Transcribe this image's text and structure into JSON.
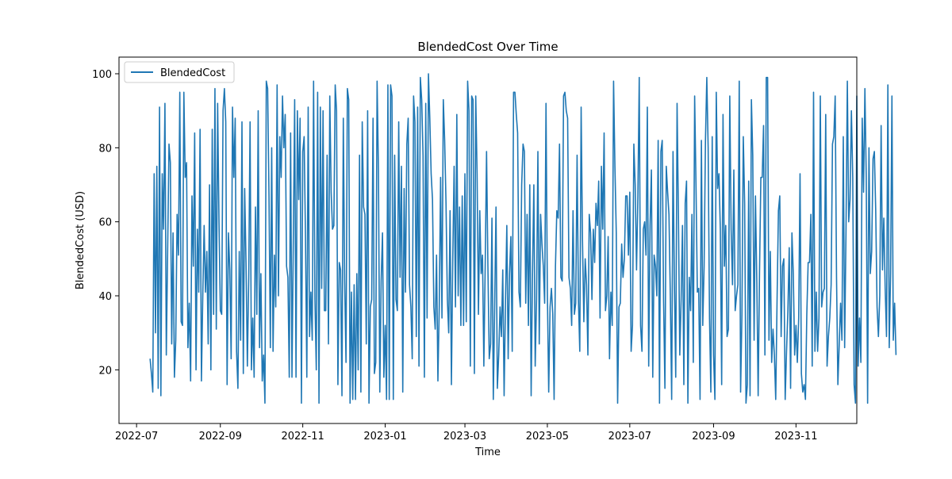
{
  "chart_data": {
    "type": "line",
    "title": "BlendedCost Over Time",
    "xlabel": "Time",
    "ylabel": "BlendedCost (USD)",
    "x_ticks": [
      "2022-07",
      "2022-09",
      "2022-11",
      "2023-01",
      "2023-03",
      "2023-05",
      "2023-07",
      "2023-09",
      "2023-11"
    ],
    "y_ticks": [
      20,
      40,
      60,
      80,
      100
    ],
    "xlim": [
      "2022-06-18",
      "2023-12-16"
    ],
    "ylim": [
      5.5,
      104.5
    ],
    "grid": false,
    "legend_position": "upper left",
    "series": [
      {
        "name": "BlendedCost",
        "color": "#1f77b4",
        "start_date": "2022-07-11",
        "values": [
          23,
          19,
          14,
          73,
          30,
          75,
          15,
          91,
          13,
          73,
          58,
          92,
          24,
          52,
          81,
          76,
          27,
          57,
          18,
          28,
          62,
          51,
          95,
          33,
          32,
          95,
          72,
          76,
          26,
          38,
          17,
          67,
          48,
          84,
          20,
          58,
          41,
          85,
          17,
          40,
          59,
          41,
          52,
          27,
          70,
          20,
          85,
          35,
          96,
          31,
          92,
          60,
          36,
          35,
          90,
          96,
          87,
          16,
          57,
          47,
          23,
          91,
          72,
          88,
          25,
          15,
          52,
          28,
          87,
          19,
          69,
          49,
          21,
          45,
          87,
          20,
          34,
          18,
          64,
          35,
          90,
          26,
          46,
          17,
          24,
          11,
          98,
          96,
          67,
          26,
          80,
          25,
          51,
          37,
          97,
          40,
          83,
          72,
          94,
          80,
          89,
          48,
          45,
          18,
          84,
          18,
          55,
          93,
          18,
          90,
          66,
          88,
          11,
          79,
          83,
          56,
          18,
          91,
          29,
          41,
          28,
          98,
          39,
          20,
          95,
          11,
          91,
          42,
          90,
          36,
          36,
          78,
          27,
          94,
          68,
          58,
          59,
          97,
          90,
          16,
          49,
          47,
          13,
          88,
          44,
          22,
          96,
          93,
          11,
          41,
          12,
          43,
          12,
          46,
          20,
          78,
          14,
          87,
          64,
          62,
          27,
          90,
          11,
          37,
          39,
          88,
          19,
          22,
          98,
          74,
          14,
          44,
          57,
          18,
          32,
          12,
          97,
          12,
          97,
          94,
          12,
          78,
          39,
          36,
          87,
          45,
          75,
          14,
          69,
          41,
          81,
          88,
          43,
          37,
          23,
          94,
          87,
          29,
          91,
          21,
          99,
          93,
          78,
          18,
          92,
          34,
          100,
          88,
          73,
          66,
          37,
          31,
          51,
          17,
          37,
          72,
          34,
          93,
          82,
          65,
          39,
          30,
          63,
          16,
          50,
          75,
          37,
          89,
          40,
          64,
          32,
          67,
          32,
          73,
          33,
          98,
          90,
          21,
          94,
          93,
          19,
          94,
          73,
          35,
          63,
          46,
          51,
          21,
          48,
          79,
          48,
          23,
          27,
          61,
          12,
          37,
          64,
          15,
          24,
          37,
          29,
          47,
          13,
          38,
          59,
          23,
          46,
          56,
          25,
          95,
          95,
          89,
          84,
          41,
          37,
          70,
          81,
          79,
          38,
          62,
          32,
          70,
          13,
          46,
          70,
          21,
          39,
          79,
          27,
          62,
          54,
          48,
          38,
          92,
          41,
          14,
          37,
          42,
          35,
          12,
          48,
          63,
          61,
          81,
          45,
          44,
          94,
          95,
          90,
          88,
          45,
          42,
          32,
          63,
          35,
          38,
          78,
          39,
          25,
          91,
          55,
          33,
          50,
          43,
          24,
          62,
          57,
          39,
          58,
          49,
          65,
          59,
          71,
          34,
          75,
          58,
          84,
          36,
          40,
          56,
          23,
          41,
          32,
          98,
          75,
          57,
          11,
          37,
          38,
          54,
          45,
          50,
          67,
          67,
          51,
          68,
          25,
          32,
          81,
          70,
          47,
          67,
          99,
          32,
          25,
          58,
          60,
          51,
          91,
          21,
          59,
          74,
          18,
          51,
          48,
          40,
          82,
          11,
          79,
          82,
          39,
          15,
          75,
          68,
          62,
          40,
          12,
          79,
          44,
          18,
          92,
          62,
          24,
          39,
          59,
          16,
          65,
          71,
          11,
          45,
          36,
          62,
          22,
          94,
          70,
          41,
          42,
          12,
          82,
          32,
          48,
          82,
          99,
          80,
          34,
          14,
          83,
          24,
          12,
          95,
          69,
          73,
          58,
          16,
          89,
          48,
          59,
          29,
          31,
          94,
          58,
          43,
          74,
          36,
          40,
          43,
          98,
          14,
          35,
          83,
          65,
          11,
          16,
          71,
          13,
          93,
          78,
          28,
          67,
          44,
          13,
          46,
          72,
          72,
          86,
          24,
          99,
          99,
          28,
          52,
          22,
          31,
          24,
          12,
          39,
          63,
          67,
          29,
          48,
          50,
          12,
          25,
          36,
          53,
          15,
          57,
          46,
          24,
          32,
          22,
          34,
          73,
          19,
          14,
          16,
          12,
          35,
          49,
          49,
          62,
          21,
          95,
          25,
          41,
          25,
          34,
          94,
          37,
          41,
          42,
          89,
          21,
          29,
          34,
          43,
          81,
          83,
          94,
          45,
          16,
          27,
          38,
          28,
          83,
          26,
          57,
          98,
          60,
          66,
          90,
          72,
          16,
          11,
          94,
          21,
          34,
          22,
          88,
          68,
          96,
          72,
          11,
          80,
          46,
          52,
          77,
          79,
          63,
          37,
          29,
          40,
          86,
          47,
          61,
          42,
          29,
          97,
          26,
          46,
          94,
          28,
          38,
          24
        ]
      }
    ]
  }
}
